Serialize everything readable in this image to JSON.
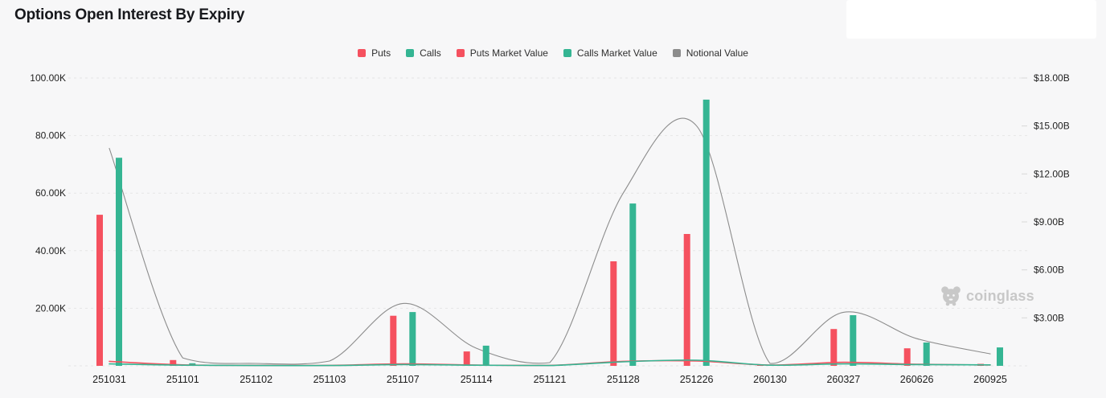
{
  "header": {
    "title": "Options Open Interest By Expiry"
  },
  "watermark": {
    "label": "coinglass"
  },
  "colors": {
    "background": "#f7f7f8",
    "puts_red": "#F5515F",
    "calls_teal": "#35B593",
    "notional_gray": "#8C8C8C",
    "gridline": "#e6e6e6",
    "axis_text": "#1f1f1f",
    "watermark_gray": "#c8c8c8"
  },
  "chart_data": {
    "type": "bar",
    "title": "Options Open Interest By Expiry",
    "categories": [
      "251031",
      "251101",
      "251102",
      "251103",
      "251107",
      "251114",
      "251121",
      "251128",
      "251226",
      "260130",
      "260327",
      "260626",
      "260925"
    ],
    "series": [
      {
        "name": "Puts",
        "type": "bar",
        "axis": "left",
        "color": "#F5515F",
        "values": [
          52.5,
          2.0,
          0.25,
          0.2,
          17.4,
          5.0,
          0.2,
          36.3,
          45.8,
          0.3,
          12.8,
          6.1,
          0.7
        ]
      },
      {
        "name": "Calls",
        "type": "bar",
        "axis": "left",
        "color": "#35B593",
        "values": [
          72.3,
          0.9,
          0.3,
          0.3,
          18.7,
          7.0,
          0.3,
          56.4,
          92.5,
          0.4,
          17.6,
          8.1,
          6.4
        ]
      },
      {
        "name": "Puts Market Value",
        "type": "line",
        "axis": "right",
        "color": "#F5515F",
        "values": [
          0.28,
          0.06,
          0.03,
          0.03,
          0.12,
          0.05,
          0.03,
          0.28,
          0.3,
          0.05,
          0.22,
          0.1,
          0.05
        ]
      },
      {
        "name": "Calls Market Value",
        "type": "line",
        "axis": "right",
        "color": "#35B593",
        "values": [
          0.12,
          0.04,
          0.02,
          0.02,
          0.08,
          0.04,
          0.02,
          0.25,
          0.35,
          0.04,
          0.12,
          0.08,
          0.06
        ]
      },
      {
        "name": "Notional Value",
        "type": "line",
        "axis": "right",
        "color": "#8C8C8C",
        "values": [
          13.6,
          0.5,
          0.15,
          0.3,
          3.9,
          1.1,
          0.2,
          10.8,
          15.0,
          0.15,
          3.35,
          1.7,
          0.75
        ]
      }
    ],
    "left_axis": {
      "tick_labels": [
        "20.00K",
        "40.00K",
        "60.00K",
        "80.00K",
        "100.00K"
      ],
      "tick_values": [
        20,
        40,
        60,
        80,
        100
      ],
      "min": 0,
      "max": 100,
      "unit_scale": "thousands of contracts"
    },
    "right_axis": {
      "tick_labels": [
        "$3.00B",
        "$6.00B",
        "$9.00B",
        "$12.00B",
        "$15.00B",
        "$18.00B"
      ],
      "tick_values": [
        3,
        6,
        9,
        12,
        15,
        18
      ],
      "min": 0,
      "max": 18,
      "unit_scale": "billions USD"
    },
    "legend_entries": [
      "Puts",
      "Calls",
      "Puts Market Value",
      "Calls Market Value",
      "Notional Value"
    ],
    "legend_position": "top-center",
    "grid": "dashed-horizontal"
  }
}
